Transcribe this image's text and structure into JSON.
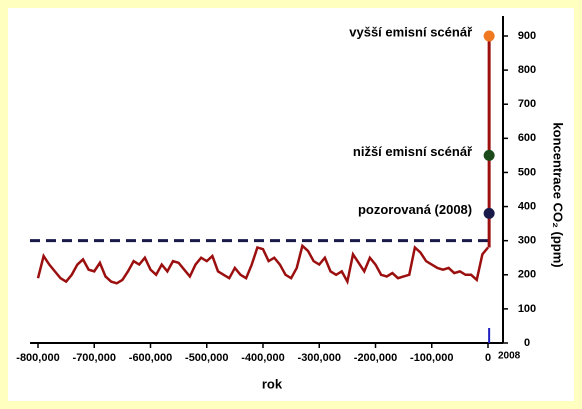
{
  "chart_data": {
    "type": "line",
    "x_label": "rok",
    "y_label": "koncentrace CO₂ (ppm)",
    "xlim": [
      -800000,
      0
    ],
    "xticks": [
      {
        "value": -800000,
        "label": "-800,000"
      },
      {
        "value": -700000,
        "label": "-700,000"
      },
      {
        "value": -600000,
        "label": "-600,000"
      },
      {
        "value": -500000,
        "label": "-500,000"
      },
      {
        "value": -400000,
        "label": "-400,000"
      },
      {
        "value": -300000,
        "label": "-300,000"
      },
      {
        "value": -200000,
        "label": "-200,000"
      },
      {
        "value": -100000,
        "label": "-100,000"
      },
      0
    ],
    "ylim": [
      0,
      900
    ],
    "yticks": [
      0,
      100,
      200,
      300,
      400,
      500,
      600,
      700,
      800,
      900
    ],
    "x": [
      -800000,
      -790000,
      -780000,
      -770000,
      -760000,
      -750000,
      -740000,
      -730000,
      -720000,
      -710000,
      -700000,
      -690000,
      -680000,
      -670000,
      -660000,
      -650000,
      -640000,
      -630000,
      -620000,
      -610000,
      -600000,
      -590000,
      -580000,
      -570000,
      -560000,
      -550000,
      -540000,
      -530000,
      -520000,
      -510000,
      -500000,
      -490000,
      -480000,
      -470000,
      -460000,
      -450000,
      -440000,
      -430000,
      -420000,
      -410000,
      -400000,
      -390000,
      -380000,
      -370000,
      -360000,
      -350000,
      -340000,
      -330000,
      -320000,
      -310000,
      -300000,
      -290000,
      -280000,
      -270000,
      -260000,
      -250000,
      -240000,
      -230000,
      -220000,
      -210000,
      -200000,
      -190000,
      -180000,
      -170000,
      -160000,
      -150000,
      -140000,
      -130000,
      -120000,
      -110000,
      -100000,
      -90000,
      -80000,
      -70000,
      -60000,
      -50000,
      -40000,
      -30000,
      -20000,
      -10000,
      0
    ],
    "series": [
      {
        "color": "#9b0f0f",
        "values": [
          190,
          255,
          230,
          210,
          190,
          180,
          200,
          230,
          245,
          215,
          210,
          235,
          195,
          180,
          175,
          185,
          210,
          240,
          230,
          250,
          215,
          200,
          230,
          210,
          240,
          235,
          215,
          195,
          230,
          250,
          240,
          255,
          210,
          200,
          190,
          220,
          200,
          190,
          230,
          280,
          275,
          240,
          250,
          230,
          200,
          190,
          220,
          285,
          270,
          240,
          230,
          250,
          210,
          200,
          210,
          180,
          260,
          235,
          210,
          250,
          230,
          200,
          195,
          205,
          190,
          195,
          200,
          280,
          265,
          240,
          230,
          220,
          215,
          220,
          205,
          210,
          200,
          200,
          185,
          260,
          280
        ]
      }
    ],
    "rise": {
      "x": [
        2008,
        2008
      ],
      "values": [
        280,
        900
      ],
      "color": "#9b0f0f"
    },
    "reference_line": {
      "value": 300,
      "color": "#1a1a4a"
    },
    "year_marker": {
      "value": 2008,
      "label": "2008",
      "color": "#2020c0"
    },
    "points": [
      {
        "label": "vyšší emisní scénář",
        "x": 2008,
        "value": 900,
        "color": "#f07820"
      },
      {
        "label": "nižší emisní scénář",
        "x": 2008,
        "value": 550,
        "color": "#1a4a1a"
      },
      {
        "label": "pozorovaná (2008)",
        "x": 2008,
        "value": 380,
        "color": "#1a1a4a"
      }
    ]
  }
}
